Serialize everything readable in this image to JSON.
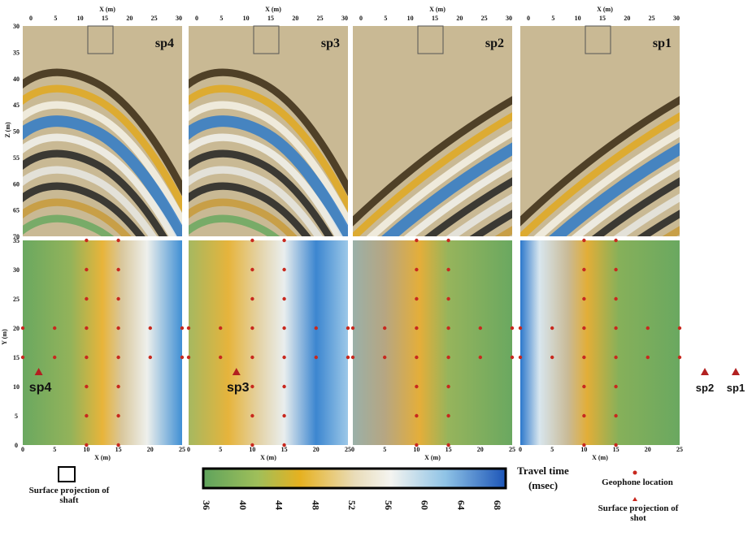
{
  "panels": [
    {
      "label": "sp4"
    },
    {
      "label": "sp3"
    },
    {
      "label": "sp2"
    },
    {
      "label": "sp1"
    }
  ],
  "top_axis": {
    "label": "X (m)",
    "ticks": [
      0,
      5,
      10,
      15,
      20,
      25,
      30
    ]
  },
  "depth_axis": {
    "label": "Z (m)",
    "ticks": [
      30,
      35,
      40,
      45,
      50,
      55,
      60,
      65,
      70
    ]
  },
  "map_y_axis": {
    "label": "Y (m)",
    "ticks": [
      0,
      5,
      10,
      15,
      20,
      25,
      30,
      35
    ]
  },
  "map_x_axis": {
    "label": "X (m)",
    "ticks": [
      0,
      5,
      10,
      15,
      20,
      25
    ]
  },
  "colorbar": {
    "title": "Travel time",
    "unit": "(msec)",
    "ticks": [
      36,
      40,
      44,
      48,
      52,
      56,
      60,
      64,
      68
    ]
  },
  "legend": {
    "shaft": "Surface projection of shaft",
    "geophone": "Geophone location",
    "shot": "Surface projection of shot"
  }
}
